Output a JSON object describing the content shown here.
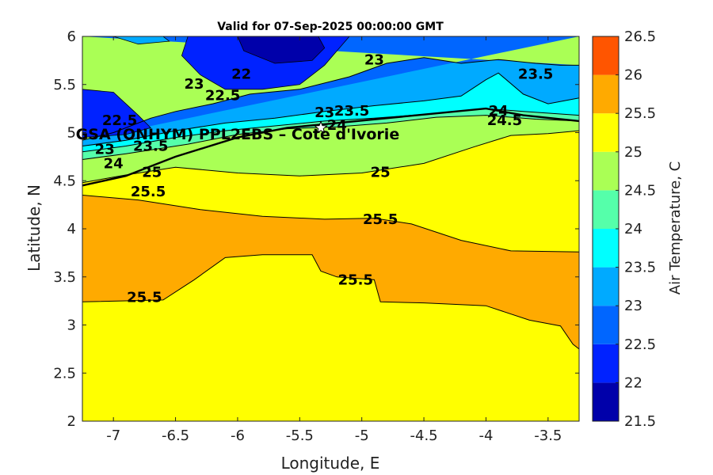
{
  "chart_data": {
    "type": "heatmap",
    "title": "Valid for 07-Sep-2025 00:00:00 GMT",
    "xlabel": "Longitude, E",
    "ylabel": "Latitude, N",
    "xlim": [
      -7.25,
      -3.25
    ],
    "ylim": [
      2,
      6
    ],
    "xticks": [
      "-7",
      "-6.5",
      "-6",
      "-5.5",
      "-5",
      "-4.5",
      "-4",
      "-3.5"
    ],
    "yticks": [
      "2",
      "2.5",
      "3",
      "3.5",
      "4",
      "4.5",
      "5",
      "5.5",
      "6"
    ],
    "colorbar": {
      "label": "Air Temperature, C",
      "levels": [
        "21.5",
        "22",
        "22.5",
        "23",
        "23.5",
        "24",
        "24.5",
        "25",
        "25.5",
        "26",
        "26.5"
      ],
      "colors": [
        "#0000aa",
        "#0022ff",
        "#0066ff",
        "#00aaff",
        "#00ffff",
        "#55ffaa",
        "#aaff55",
        "#ffff00",
        "#ffaa00",
        "#ff5500",
        "#ff0000"
      ]
    },
    "site": {
      "name": "GSA (ONHYM) PPL2EBS  – Cote d'Ivorie",
      "lon": -5.33,
      "lat": 5.05
    },
    "contour_labels": [
      {
        "text": "22.5",
        "lon": -6.95,
        "lat": 5.12
      },
      {
        "text": "23",
        "lon": -6.35,
        "lat": 5.5
      },
      {
        "text": "22.5",
        "lon": -6.12,
        "lat": 5.38
      },
      {
        "text": "22",
        "lon": -5.97,
        "lat": 5.6
      },
      {
        "text": "23",
        "lon": -4.9,
        "lat": 5.75
      },
      {
        "text": "23.5",
        "lon": -3.6,
        "lat": 5.6
      },
      {
        "text": "23",
        "lon": -5.3,
        "lat": 5.2
      },
      {
        "text": "23.5",
        "lon": -5.08,
        "lat": 5.22
      },
      {
        "text": "24",
        "lon": -3.9,
        "lat": 5.22
      },
      {
        "text": "24.5",
        "lon": -3.85,
        "lat": 5.12
      },
      {
        "text": "24",
        "lon": -5.2,
        "lat": 5.07
      },
      {
        "text": "23",
        "lon": -7.07,
        "lat": 4.82
      },
      {
        "text": "23.5",
        "lon": -6.7,
        "lat": 4.85
      },
      {
        "text": "24",
        "lon": -7.0,
        "lat": 4.67
      },
      {
        "text": "25",
        "lon": -6.69,
        "lat": 4.58
      },
      {
        "text": "25.5",
        "lon": -6.72,
        "lat": 4.38
      },
      {
        "text": "25",
        "lon": -4.85,
        "lat": 4.58
      },
      {
        "text": "25.5",
        "lon": -4.85,
        "lat": 4.09
      },
      {
        "text": "25.5",
        "lon": -5.05,
        "lat": 3.46
      },
      {
        "text": "25.5",
        "lon": -6.75,
        "lat": 3.28
      }
    ]
  }
}
